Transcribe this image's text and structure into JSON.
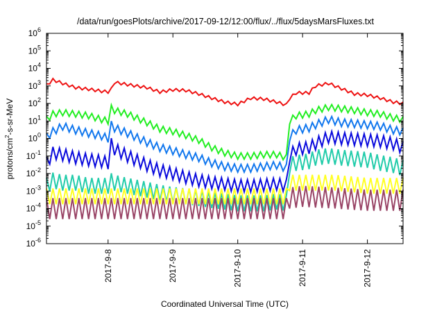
{
  "chart_data": {
    "type": "line",
    "title": "/data/run/goesPlots/archive/2017-09-12/12:00/flux/../flux/5daysMarsFluxes.txt",
    "xlabel": "Coordinated Universal Time (UTC)",
    "ylabel": {
      "prefix": "protons/cm",
      "sup": "2",
      "suffix": "-s-sr-MeV"
    },
    "yscale": "log",
    "ylim_exp": [
      -6,
      6
    ],
    "xlim": [
      7.05,
      12.55
    ],
    "x_ticks": [
      {
        "value": 8,
        "label": "2017-9-8"
      },
      {
        "value": 9,
        "label": "2017-9-9"
      },
      {
        "value": 10,
        "label": "2017-9-10"
      },
      {
        "value": 11,
        "label": "2017-9-11"
      },
      {
        "value": 12,
        "label": "2017-9-12"
      }
    ],
    "y_ticks": [
      {
        "exp": -6,
        "base": "10",
        "sup": "-6"
      },
      {
        "exp": -5,
        "base": "10",
        "sup": "-5"
      },
      {
        "exp": -4,
        "base": "10",
        "sup": "-4"
      },
      {
        "exp": -3,
        "base": "10",
        "sup": "-3"
      },
      {
        "exp": -2,
        "base": "10",
        "sup": "-2"
      },
      {
        "exp": -1,
        "base": "10",
        "sup": "-1"
      },
      {
        "exp": 0,
        "base": "10",
        "sup": "0"
      },
      {
        "exp": 1,
        "base": "10",
        "sup": "1"
      },
      {
        "exp": 2,
        "base": "10",
        "sup": "2"
      },
      {
        "exp": 3,
        "base": "10",
        "sup": "3"
      },
      {
        "exp": 4,
        "base": "10",
        "sup": "4"
      },
      {
        "exp": 5,
        "base": "10",
        "sup": "5"
      },
      {
        "exp": 6,
        "base": "10",
        "sup": "6"
      }
    ],
    "grid": false,
    "series": [
      {
        "color": "#ee1111",
        "x": [
          7.05,
          7.15,
          7.3,
          7.5,
          7.7,
          7.9,
          8.03,
          8.1,
          8.3,
          8.6,
          8.8,
          9.0,
          9.2,
          9.4,
          9.6,
          9.8,
          10.0,
          10.2,
          10.4,
          10.6,
          10.76,
          10.8,
          10.9,
          11.1,
          11.2,
          11.4,
          11.6,
          11.8,
          12.0,
          12.2,
          12.4,
          12.55
        ],
        "y": [
          1100,
          2200,
          1400,
          800,
          650,
          500,
          450,
          1600,
          1200,
          800,
          450,
          600,
          550,
          350,
          200,
          120,
          90,
          200,
          180,
          120,
          80,
          200,
          400,
          400,
          1000,
          1400,
          700,
          350,
          300,
          200,
          120,
          100
        ],
        "amp": 0.08
      },
      {
        "color": "#22ee22",
        "x": [
          7.05,
          7.15,
          7.3,
          7.5,
          7.7,
          7.9,
          8.0,
          8.03,
          8.1,
          8.3,
          8.6,
          8.8,
          9.0,
          9.2,
          9.4,
          9.6,
          9.8,
          10.0,
          10.2,
          10.4,
          10.6,
          10.76,
          10.8,
          10.9,
          11.1,
          11.2,
          11.4,
          11.6,
          11.8,
          12.0,
          12.2,
          12.4,
          12.55
        ],
        "y": [
          12,
          25,
          30,
          25,
          20,
          12,
          10,
          60,
          40,
          25,
          8,
          3.5,
          2.5,
          1.5,
          0.8,
          0.3,
          0.15,
          0.1,
          0.1,
          0.12,
          0.12,
          0.08,
          10,
          20,
          25,
          40,
          60,
          50,
          40,
          30,
          25,
          15,
          12
        ],
        "amp": 0.18
      },
      {
        "color": "#1177ee",
        "x": [
          7.05,
          7.15,
          7.3,
          7.5,
          7.7,
          7.9,
          8.0,
          8.03,
          8.1,
          8.3,
          8.6,
          8.8,
          9.0,
          9.2,
          9.4,
          9.6,
          9.8,
          10.0,
          10.2,
          10.4,
          10.6,
          10.76,
          10.8,
          10.9,
          11.1,
          11.2,
          11.4,
          11.6,
          11.8,
          12.0,
          12.2,
          12.4,
          12.55
        ],
        "y": [
          1.2,
          2.5,
          5,
          3,
          2,
          1.4,
          1.0,
          7,
          4,
          2,
          0.6,
          0.3,
          0.2,
          0.12,
          0.08,
          0.04,
          0.025,
          0.02,
          0.02,
          0.025,
          0.03,
          0.02,
          1.2,
          3,
          4,
          6,
          12,
          8,
          7,
          6,
          5,
          3,
          2.5
        ],
        "amp": 0.22
      },
      {
        "color": "#0a0add",
        "x": [
          7.05,
          7.15,
          7.3,
          7.5,
          7.7,
          7.9,
          8.0,
          8.03,
          8.1,
          8.3,
          8.6,
          8.8,
          9.0,
          9.2,
          9.4,
          9.6,
          9.8,
          10.0,
          10.2,
          10.4,
          10.6,
          10.76,
          10.8,
          10.9,
          11.1,
          11.2,
          11.4,
          11.6,
          11.8,
          12.0,
          12.2,
          12.4,
          12.55
        ],
        "y": [
          0.04,
          0.15,
          0.12,
          0.08,
          0.06,
          0.05,
          0.04,
          0.6,
          0.25,
          0.1,
          0.03,
          0.015,
          0.01,
          0.006,
          0.004,
          0.003,
          0.0025,
          0.002,
          0.002,
          0.0022,
          0.0025,
          0.002,
          0.1,
          0.25,
          0.3,
          0.5,
          1.2,
          1.0,
          0.9,
          0.8,
          0.7,
          0.5,
          0.3
        ],
        "amp": 0.35
      },
      {
        "color": "#22ccaa",
        "x": [
          7.05,
          7.15,
          7.3,
          7.5,
          7.7,
          7.9,
          8.0,
          8.03,
          8.1,
          8.3,
          8.6,
          8.8,
          9.0,
          9.2,
          9.4,
          9.6,
          9.8,
          10.0,
          10.2,
          10.4,
          10.6,
          10.76,
          10.8,
          10.9,
          11.1,
          11.2,
          11.4,
          11.6,
          11.8,
          12.0,
          12.2,
          12.4,
          12.55
        ],
        "y": [
          0.002,
          0.004,
          0.003,
          0.003,
          0.002,
          0.002,
          0.002,
          0.004,
          0.003,
          0.002,
          0.0012,
          0.0008,
          0.0006,
          0.0005,
          0.0004,
          0.0003,
          0.00025,
          0.0002,
          0.0002,
          0.0002,
          0.00025,
          0.0002,
          0.03,
          0.04,
          0.05,
          0.08,
          0.1,
          0.08,
          0.07,
          0.06,
          0.04,
          0.03,
          0.02
        ],
        "amp": 0.45
      },
      {
        "color": "#ffff22",
        "x": [
          7.05,
          7.5,
          8.0,
          8.5,
          9.0,
          9.5,
          10.0,
          10.5,
          10.76,
          10.8,
          11.0,
          11.5,
          12.0,
          12.55
        ],
        "y": [
          0.0005,
          0.0005,
          0.0005,
          0.0005,
          0.0005,
          0.0005,
          0.0005,
          0.0005,
          0.0005,
          0.003,
          0.003,
          0.003,
          0.002,
          0.002
        ],
        "amp": 0.45
      },
      {
        "color": "#994466",
        "x": [
          7.05,
          7.5,
          8.0,
          8.5,
          9.0,
          9.5,
          10.0,
          10.5,
          10.76,
          10.8,
          11.0,
          11.5,
          12.0,
          12.55
        ],
        "y": [
          0.0001,
          0.0001,
          0.0001,
          0.0001,
          0.0001,
          0.0001,
          0.0001,
          0.0001,
          0.0001,
          0.0004,
          0.0005,
          0.0004,
          0.0003,
          0.0003
        ],
        "amp": 0.6
      }
    ]
  }
}
